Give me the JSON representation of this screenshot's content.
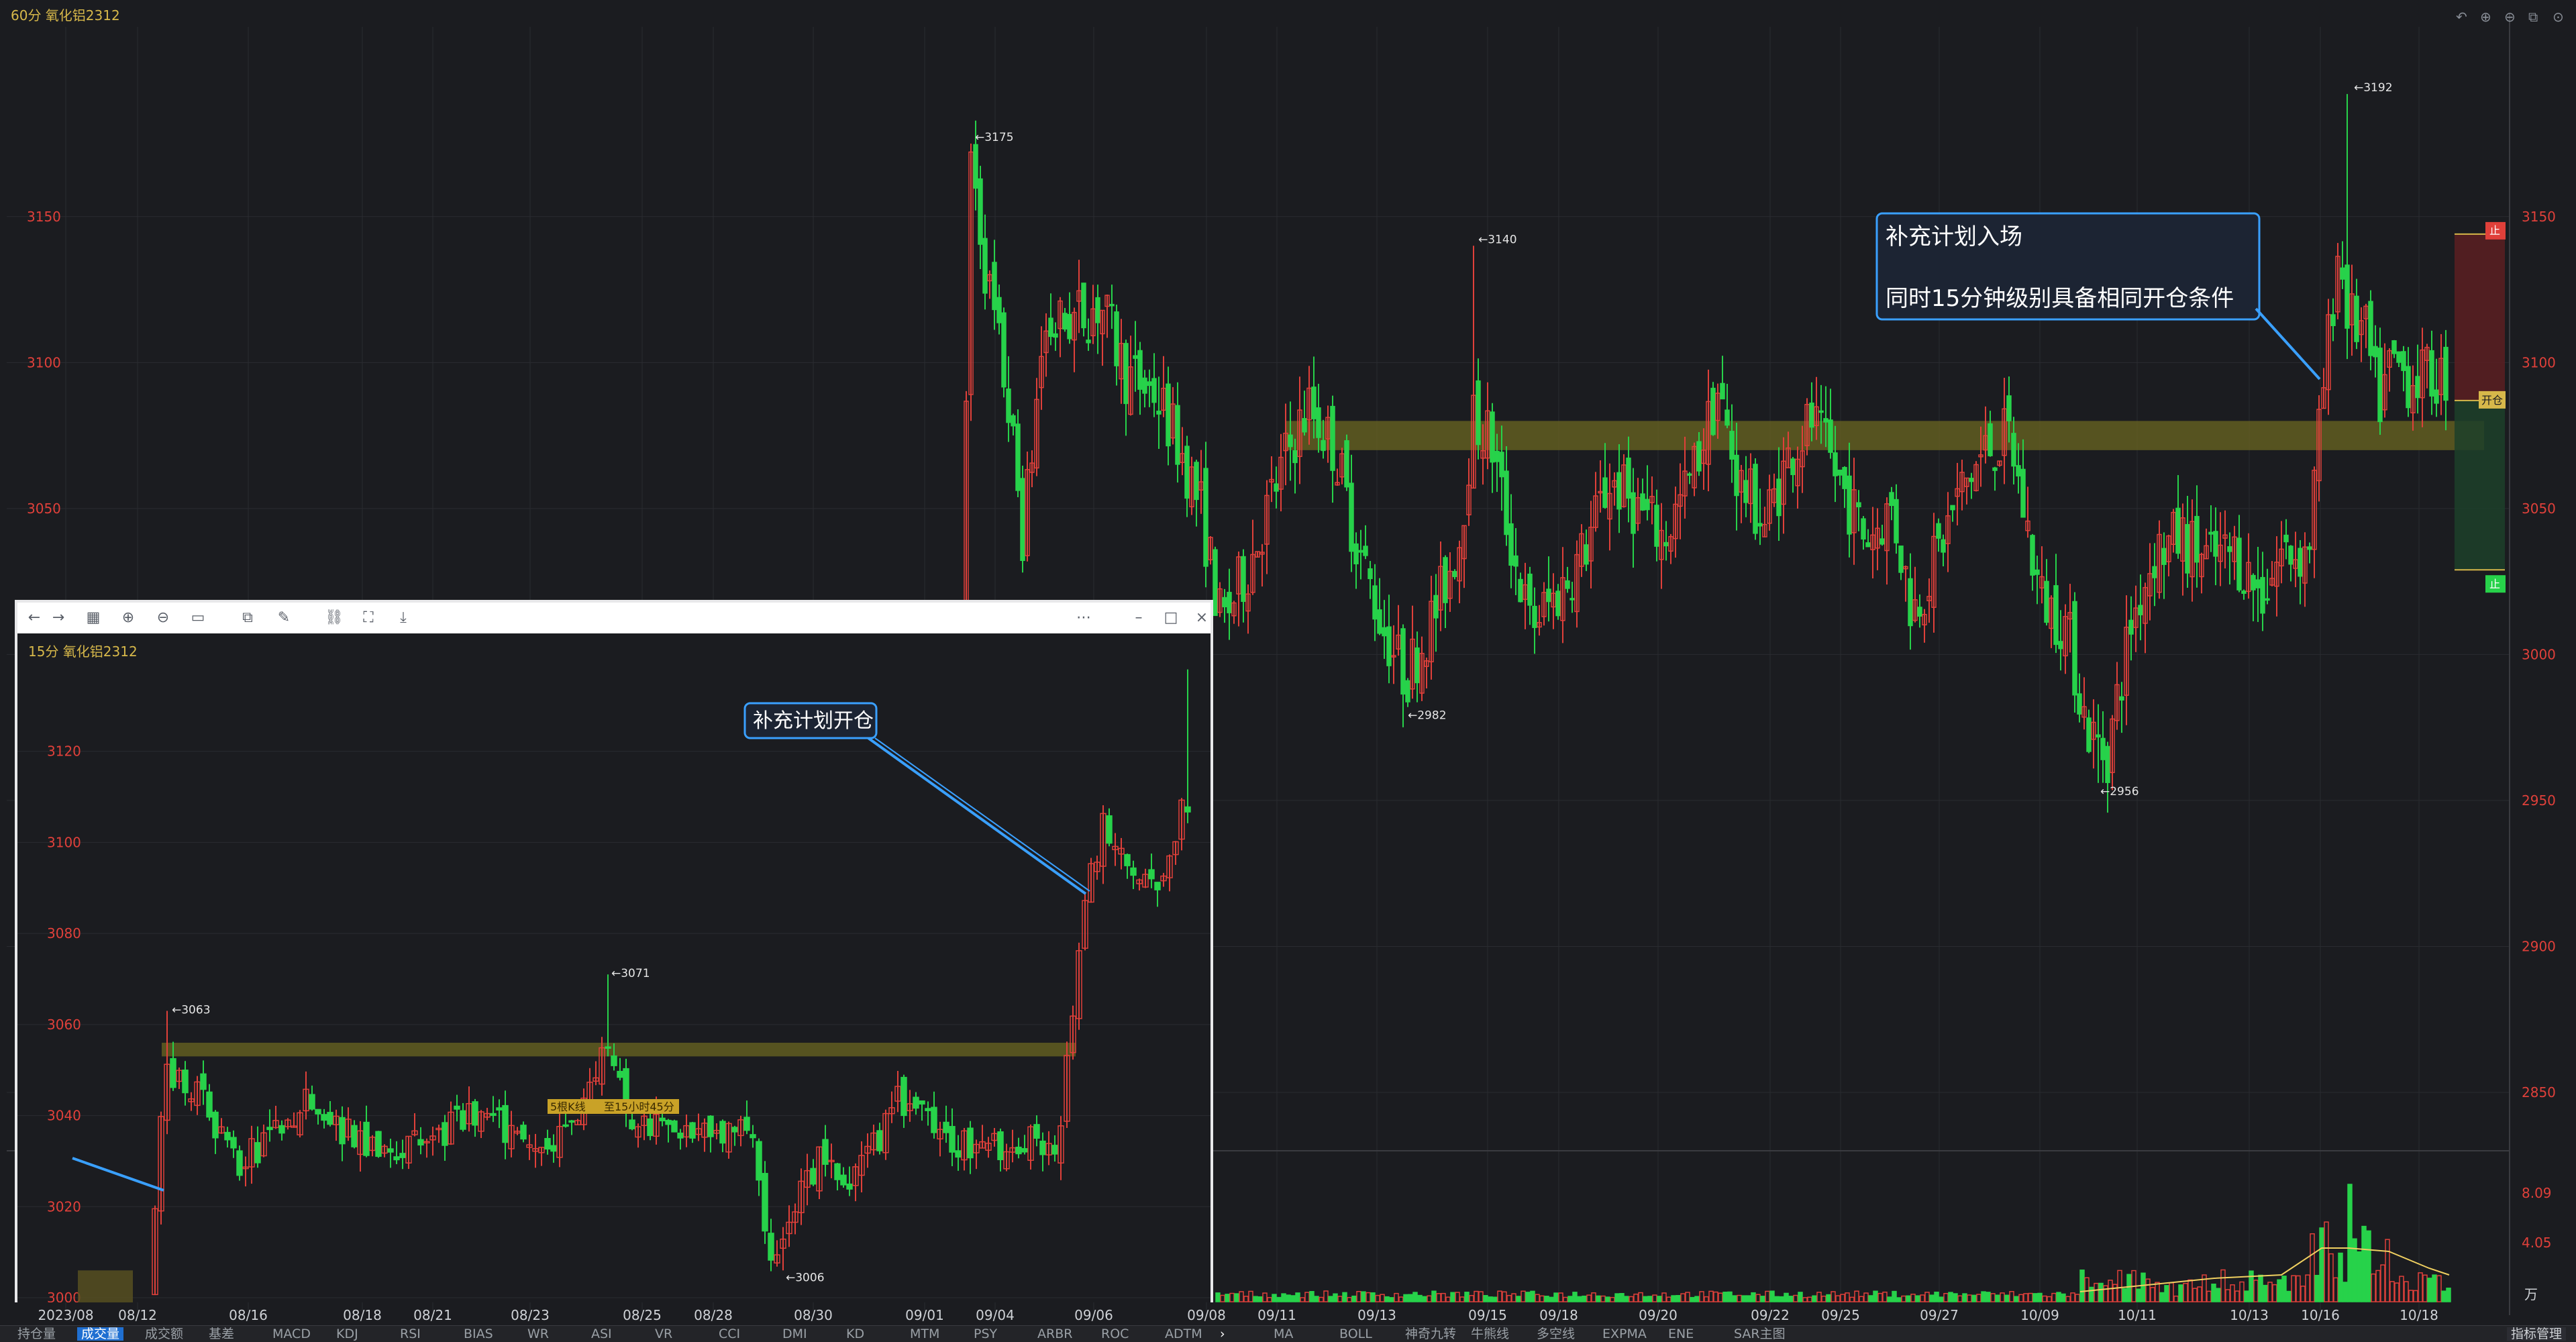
{
  "main": {
    "chart_label": "60分 氧化铝2312",
    "y_ticks": [
      "3150",
      "3100",
      "3050",
      "3000",
      "2950",
      "2900",
      "2850"
    ],
    "x_ticks": [
      "2023/08",
      "08/12",
      "08/16",
      "08/18",
      "08/21",
      "08/23",
      "08/25",
      "08/28",
      "08/30",
      "09/01",
      "09/04",
      "09/06",
      "09/08",
      "09/11",
      "09/13",
      "09/15",
      "09/18",
      "09/20",
      "09/22",
      "09/25",
      "09/27",
      "10/09",
      "10/11",
      "10/13",
      "10/16",
      "10/18"
    ],
    "annotations": [
      "3175",
      "3140",
      "2982",
      "2956",
      "3192"
    ],
    "callout_lines": [
      "补充计划入场",
      "同时15分钟级别具备相同开仓条件"
    ],
    "stop_label_top": "止",
    "entry_label": "开仓",
    "stop_label_bottom": "止",
    "vol_ticks": [
      "8.09",
      "4.05"
    ],
    "vol_unit": "万"
  },
  "popup": {
    "chart_label": "15分 氧化铝2312",
    "y_ticks": [
      "3120",
      "3100",
      "3080",
      "3060",
      "3040",
      "3020",
      "3000"
    ],
    "annotations": [
      "3063",
      "3071",
      "3006"
    ],
    "callout": "补充计划开仓",
    "zone_labels": [
      "5根K线",
      "至15小时45分"
    ]
  },
  "bottom_tabs": {
    "left": [
      "持仓量",
      "成交量",
      "成交额",
      "基差",
      "MACD",
      "KDJ",
      "RSI",
      "BIAS",
      "WR",
      "ASI",
      "VR",
      "CCI",
      "DMI",
      "KD",
      "MTM",
      "PSY",
      "ARBR",
      "ROC",
      "ADTM"
    ],
    "right": [
      "MA",
      "BOLL",
      "神奇九转",
      "牛熊线",
      "多空线",
      "EXPMA",
      "ENE",
      "SAR主图"
    ],
    "manage": "指标管理"
  },
  "colors": {
    "up": "#e0403a",
    "down": "#27d24a",
    "grid": "#2a2b30",
    "zone": "#6b6520",
    "callout": "#3aa0ff"
  },
  "chart_data": [
    {
      "type": "candlestick",
      "title": "60分 氧化铝2312",
      "ylim": [
        2830,
        3215
      ],
      "y_ticks": [
        3150,
        3100,
        3050,
        3000,
        2950,
        2900,
        2850
      ],
      "x_ticks": [
        "2023/08",
        "08/12",
        "08/16",
        "08/18",
        "08/21",
        "08/23",
        "08/25",
        "08/28",
        "08/30",
        "09/01",
        "09/04",
        "09/06",
        "09/08",
        "09/11",
        "09/13",
        "09/15",
        "09/18",
        "09/20",
        "09/22",
        "09/25",
        "09/27",
        "10/09",
        "10/11",
        "10/13",
        "10/16",
        "10/18"
      ],
      "labeled_extremes": [
        {
          "label": "3175",
          "value": 3175
        },
        {
          "label": "3140",
          "value": 3140
        },
        {
          "label": "2982",
          "value": 2982
        },
        {
          "label": "2956",
          "value": 2956
        },
        {
          "label": "3192",
          "value": 3192
        }
      ],
      "resistance_zone": [
        3070,
        3080
      ],
      "position": {
        "stop_loss_top": 3144,
        "entry": 3087,
        "stop_loss_bottom": 3029
      },
      "volume_ticks": [
        8.09,
        4.05
      ],
      "volume_unit": "万"
    },
    {
      "type": "candlestick",
      "title": "15分 氧化铝2312",
      "ylim": [
        3000,
        3140
      ],
      "y_ticks": [
        3120,
        3100,
        3080,
        3060,
        3040,
        3020,
        3000
      ],
      "labeled_extremes": [
        {
          "label": "3063",
          "value": 3063
        },
        {
          "label": "3071",
          "value": 3071
        },
        {
          "label": "3006",
          "value": 3006
        }
      ],
      "resistance_zone": [
        3053,
        3056
      ]
    }
  ]
}
